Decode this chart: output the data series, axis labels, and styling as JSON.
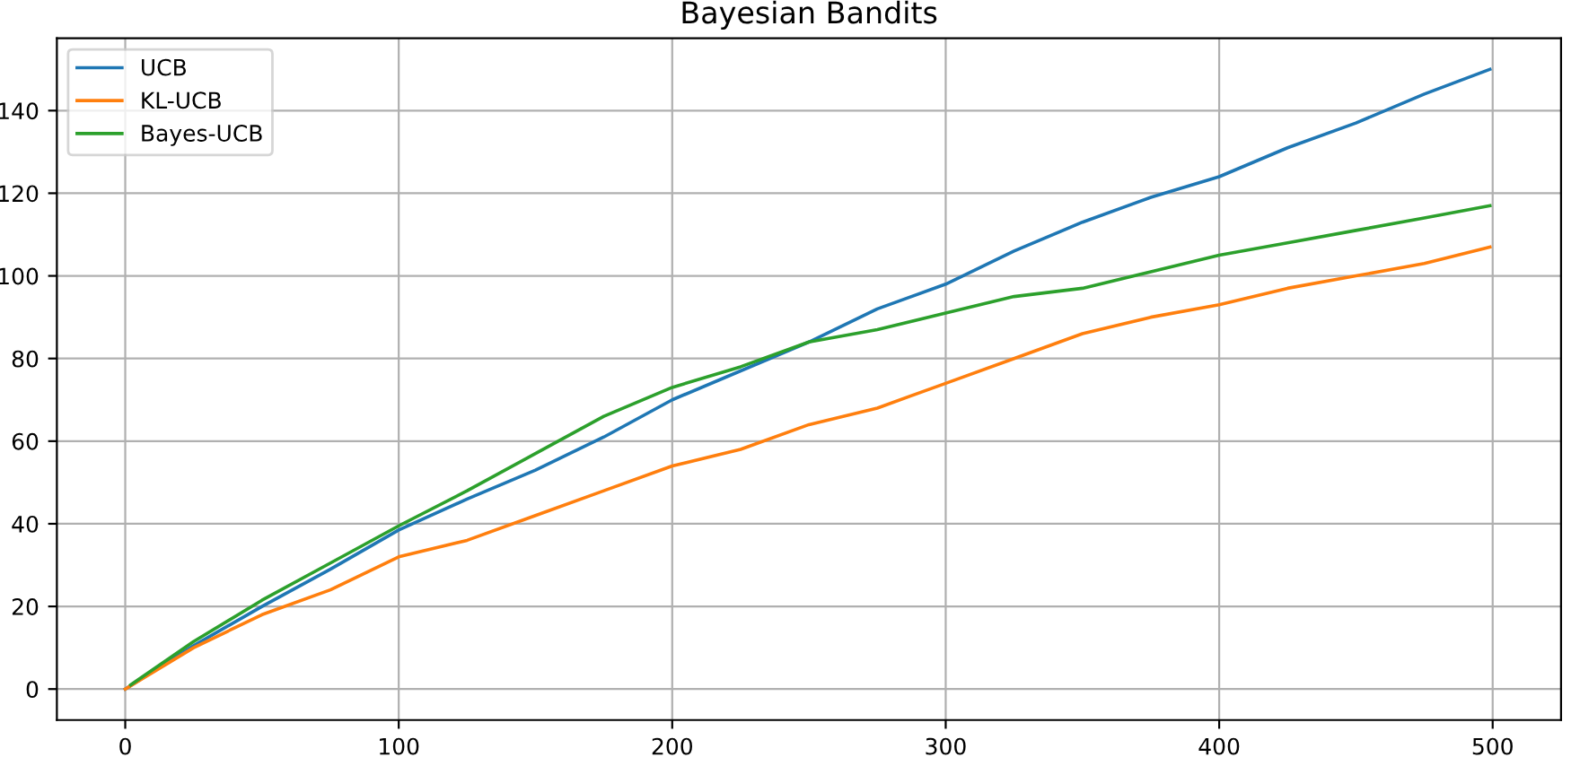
{
  "chart_data": {
    "type": "line",
    "title": "Bayesian Bandits",
    "x": [
      0,
      25,
      50,
      75,
      100,
      125,
      150,
      175,
      200,
      225,
      250,
      275,
      300,
      325,
      350,
      375,
      400,
      425,
      450,
      475,
      499
    ],
    "series": [
      {
        "name": "UCB",
        "color": "#1f77b4",
        "values": [
          0,
          10.5,
          20,
          29,
          38.5,
          46,
          53,
          61,
          70,
          77,
          84,
          92,
          98,
          106,
          113,
          119,
          124,
          131,
          137,
          144,
          150
        ]
      },
      {
        "name": "KL-UCB",
        "color": "#ff7f0e",
        "values": [
          0,
          10,
          18,
          24,
          32,
          36,
          42,
          48,
          54,
          58,
          64,
          68,
          74,
          80,
          86,
          90,
          93,
          97,
          100,
          103,
          107
        ]
      },
      {
        "name": "Bayes-UCB",
        "color": "#2ca02c",
        "x": [
          2,
          25,
          50,
          75,
          100,
          125,
          150,
          175,
          200,
          225,
          250,
          275,
          300,
          325,
          350,
          375,
          400,
          425,
          450,
          475,
          499
        ],
        "values": [
          1,
          11.5,
          21.5,
          30.5,
          39.5,
          48,
          57,
          66,
          73,
          78,
          84,
          87,
          91,
          95,
          97,
          101,
          105,
          108,
          111,
          114,
          117
        ]
      }
    ],
    "xlim": [
      -25,
      525
    ],
    "ylim": [
      -7.5,
      157.5
    ],
    "xticks": [
      0,
      100,
      200,
      300,
      400,
      500
    ],
    "yticks": [
      0,
      20,
      40,
      60,
      80,
      100,
      120,
      140
    ],
    "grid": true,
    "legend": "top left"
  }
}
